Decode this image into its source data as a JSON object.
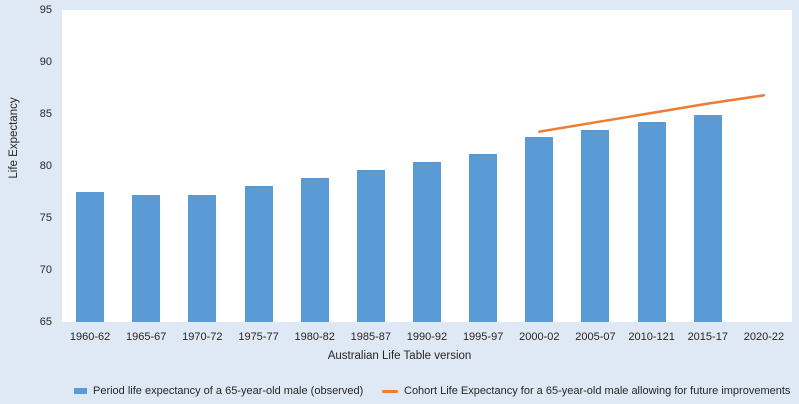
{
  "figure": {
    "background_color": "#DEE9F5",
    "plot_background_color": "#FFFFFF",
    "text_color": "#262626"
  },
  "chart_data": {
    "type": "bar",
    "title": "",
    "categories": [
      "1960-62",
      "1965-67",
      "1970-72",
      "1975-77",
      "1980-82",
      "1985-87",
      "1990-92",
      "1995-97",
      "2000-02",
      "2005-07",
      "2010-121",
      "2015-17",
      "2020-22"
    ],
    "series": [
      {
        "name": "Period life expectancy of a 65-year-old male (observed)",
        "type": "bar",
        "color": "#5B9BD5",
        "values": [
          77.5,
          77.2,
          77.2,
          78.1,
          78.8,
          79.6,
          80.4,
          81.2,
          82.8,
          83.5,
          84.2,
          84.9,
          null
        ]
      },
      {
        "name": "Cohort Life Expectancy for a 65-year-old male allowing for future improvements",
        "type": "line",
        "color": "#ED7D31",
        "values": [
          null,
          null,
          null,
          null,
          null,
          null,
          null,
          null,
          83.3,
          84.2,
          85.1,
          86.0,
          86.8
        ]
      }
    ],
    "xlabel": "Australian Life Table version",
    "ylabel": "Life Expectancy",
    "ylim": [
      65,
      95
    ],
    "yticks": [
      65,
      70,
      75,
      80,
      85,
      90,
      95
    ],
    "grid": false,
    "legend_position": "bottom"
  }
}
